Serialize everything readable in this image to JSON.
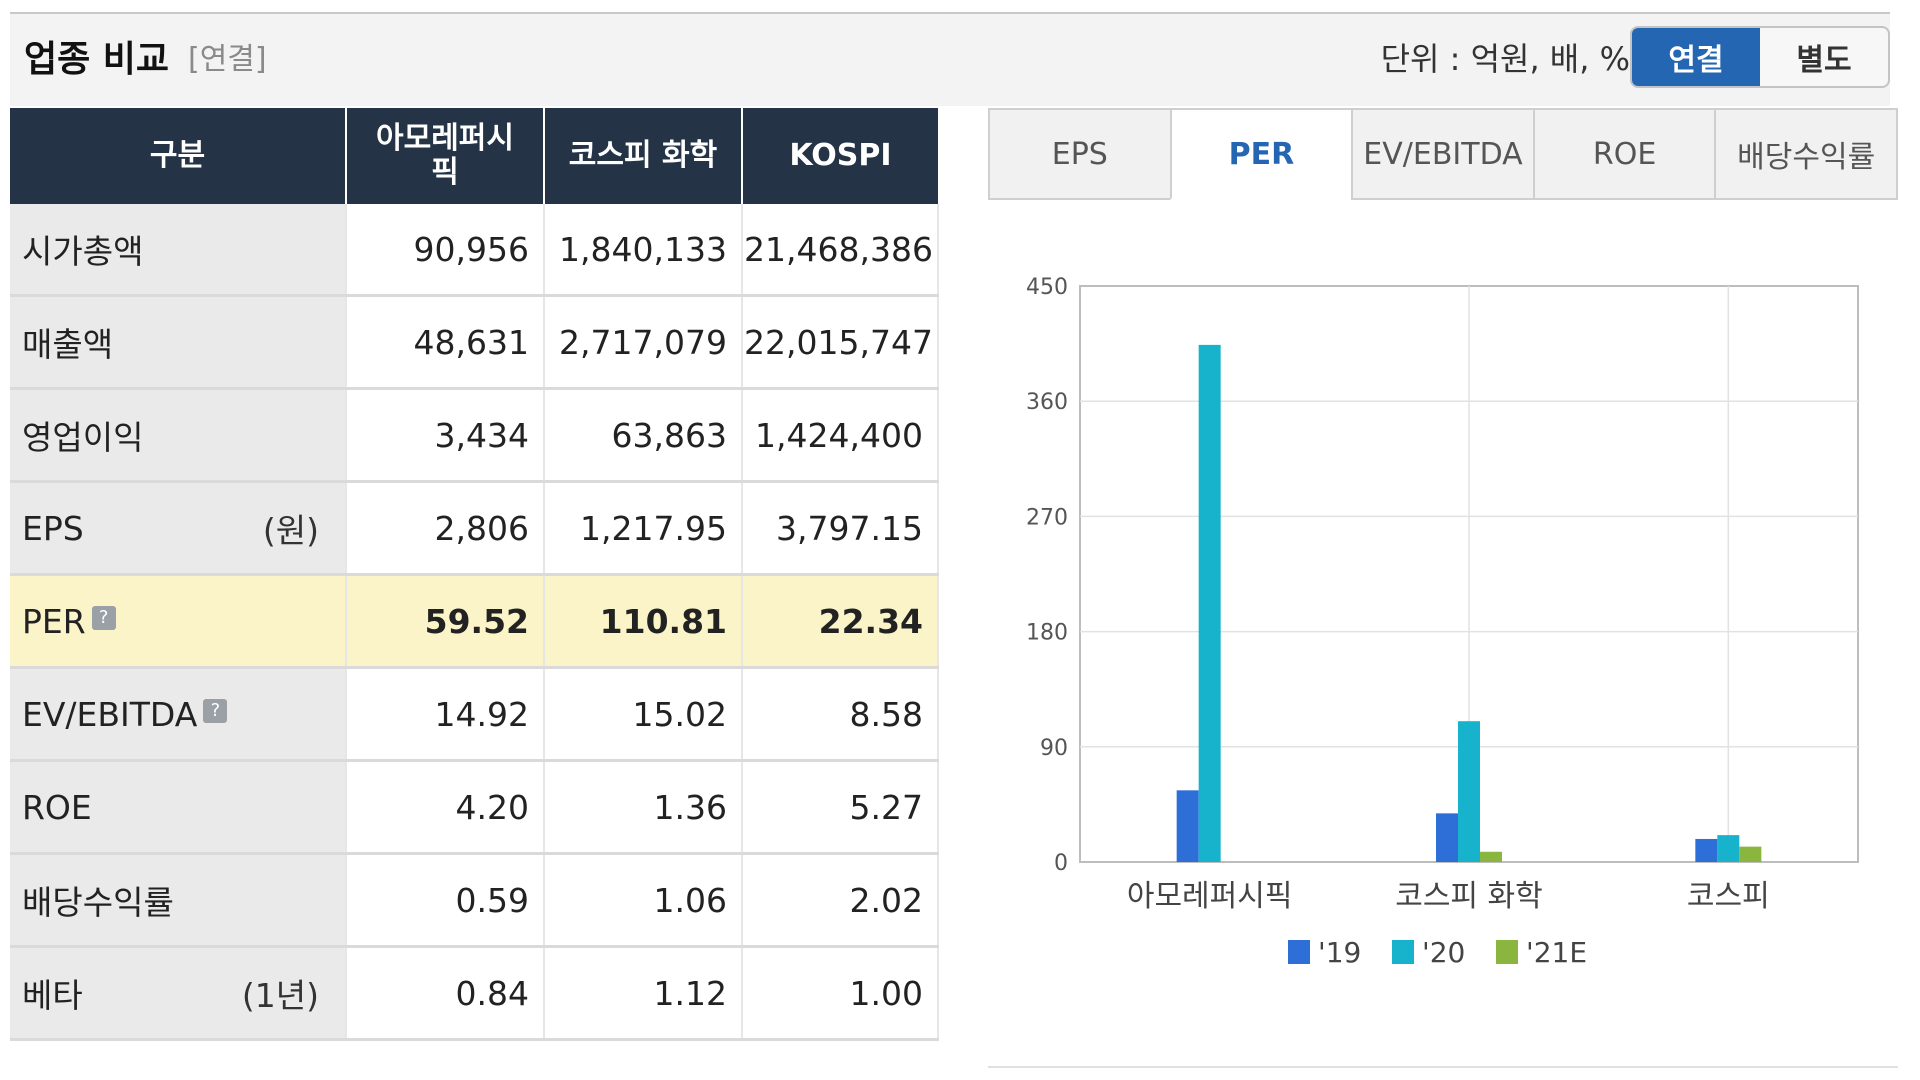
{
  "header": {
    "title": "업종 비교",
    "subtitle": "[연결]",
    "unit_label": "단위 : 억원, 배, %",
    "toggle": {
      "active": "연결",
      "inactive": "별도"
    }
  },
  "table": {
    "columns": [
      "구분",
      "아모레퍼시\n픽",
      "코스피 화학",
      "KOSPI"
    ],
    "rows": [
      {
        "label": "시가총액",
        "unit": "",
        "help": "",
        "values": [
          "90,956",
          "1,840,133",
          "21,468,386"
        ]
      },
      {
        "label": "매출액",
        "unit": "",
        "help": "",
        "values": [
          "48,631",
          "2,717,079",
          "22,015,747"
        ]
      },
      {
        "label": "영업이익",
        "unit": "",
        "help": "",
        "values": [
          "3,434",
          "63,863",
          "1,424,400"
        ]
      },
      {
        "label": "EPS",
        "unit": "(원)",
        "help": "",
        "values": [
          "2,806",
          "1,217.95",
          "3,797.15"
        ]
      },
      {
        "label": "PER",
        "unit": "",
        "help": "?",
        "values": [
          "59.52",
          "110.81",
          "22.34"
        ]
      },
      {
        "label": "EV/EBITDA",
        "unit": "",
        "help": "?",
        "values": [
          "14.92",
          "15.02",
          "8.58"
        ]
      },
      {
        "label": "ROE",
        "unit": "",
        "help": "",
        "values": [
          "4.20",
          "1.36",
          "5.27"
        ]
      },
      {
        "label": "배당수익률",
        "unit": "",
        "help": "",
        "values": [
          "0.59",
          "1.06",
          "2.02"
        ]
      },
      {
        "label": "베타",
        "unit": "(1년)",
        "help": "",
        "values": [
          "0.84",
          "1.12",
          "1.00"
        ]
      }
    ]
  },
  "tabs": [
    "EPS",
    "PER",
    "EV/EBITDA",
    "ROE",
    "배당수익률"
  ],
  "active_tab": "PER",
  "colors": {
    "header_bg": "#243446",
    "accent": "#2566b3",
    "highlight": "#fbf4c9"
  },
  "chart_data": {
    "type": "bar",
    "categories": [
      "아모레퍼시픽",
      "코스피  화학",
      "코스피"
    ],
    "series": [
      {
        "name": "'19",
        "color": "#2d6fd6",
        "values": [
          56,
          38,
          18
        ]
      },
      {
        "name": "'20",
        "color": "#17b3cc",
        "values": [
          404,
          110,
          21
        ]
      },
      {
        "name": "'21E",
        "color": "#8ab63f",
        "values": [
          0,
          8,
          12
        ]
      }
    ],
    "ylim": [
      0,
      450
    ],
    "yticks": [
      "0",
      "90",
      "180",
      "270",
      "360",
      "450"
    ],
    "grid": true,
    "legend": "bottom-center"
  }
}
